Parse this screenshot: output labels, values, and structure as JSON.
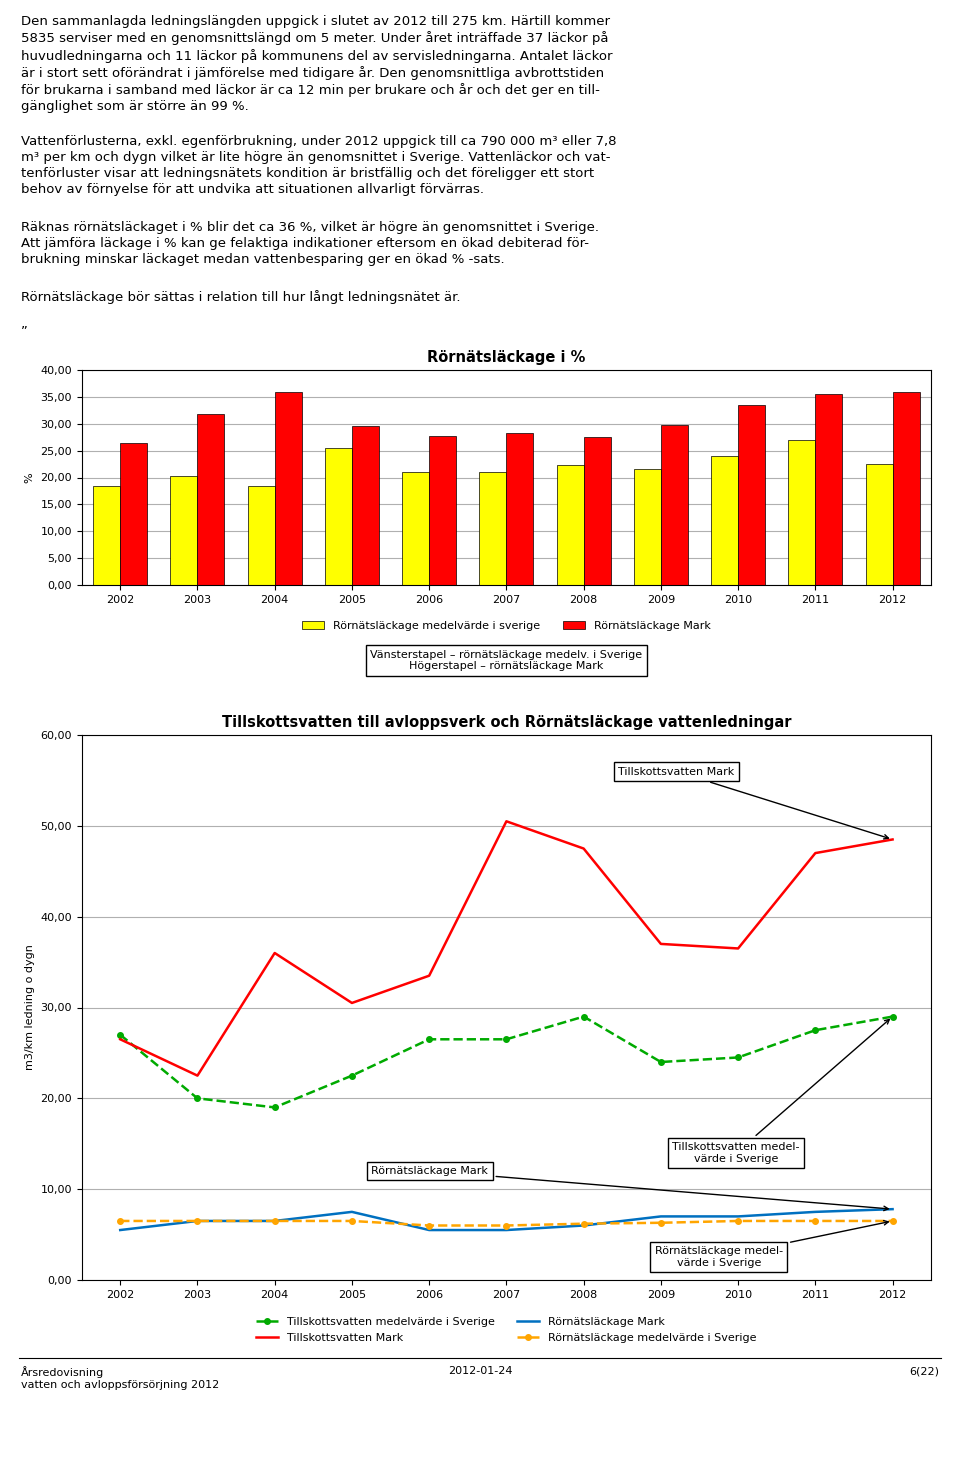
{
  "page_texts": [
    "Den sammanlagda ledningslängden uppgick i slutet av 2012 till 275 km. Härtill kommer\n5835 serviser med en genomsnittslängd om 5 meter. Under året inträffade 37 läckor på\nhuvudledningarna och 11 läckor på kommunens del av servisledningarna. Antalet läckor\när i stort sett oförändrat i jämförelse med tidigare år. Den genomsnittliga avbrottstiden\nför brukarna i samband med läckor är ca 12 min per brukare och år och det ger en till-\ngänglighet som är större än 99 %.",
    "Vattenförlusterna, exkl. egenförbrukning, under 2012 uppgick till ca 790 000 m³ eller 7,8\nm³ per km och dygn vilket är lite högre än genomsnittet i Sverige. Vattenläckor och vat-\ntenförluster visar att ledningsnätets kondition är bristfällig och det föreligger ett stort\nbehov av förnyelse för att undvika att situationen allvarligt förvärras.",
    "Räknas rörnätsläckaget i % blir det ca 36 %, vilket är högre än genomsnittet i Sverige.\nAtt jämföra läckage i % kan ge felaktiga indikationer eftersom en ökad debiterad för-\nbrukning minskar läckaget medan vattenbesparing ger en ökad % -sats.",
    "Rörnätsläckage bör sättas i relation till hur långt ledningsnätet är.",
    "”"
  ],
  "chart_data": [
    {
      "type": "bar",
      "title": "Rörnätsläckage i %",
      "y_label": "%",
      "categories": [
        "2002",
        "2003",
        "2004",
        "2005",
        "2006",
        "2007",
        "2008",
        "2009",
        "2010",
        "2011",
        "2012"
      ],
      "series": [
        {
          "name": "Rörnätsläckage medelvärde i sverige",
          "color": "#FFFF00",
          "values": [
            18.5,
            20.3,
            18.5,
            25.5,
            21.0,
            21.0,
            22.3,
            21.5,
            24.0,
            27.0,
            22.5
          ]
        },
        {
          "name": "Rörnätsläckage Mark",
          "color": "#FF0000",
          "values": [
            26.5,
            31.8,
            36.0,
            29.5,
            27.7,
            28.2,
            27.5,
            29.7,
            33.5,
            35.5,
            36.0
          ]
        }
      ],
      "ylim": [
        0,
        40
      ],
      "yticks": [
        {
          "value": 0,
          "label": "0,00"
        },
        {
          "value": 5,
          "label": "5,00"
        },
        {
          "value": 10,
          "label": "10,00"
        },
        {
          "value": 15,
          "label": "15,00"
        },
        {
          "value": 20,
          "label": "20,00"
        },
        {
          "value": 25,
          "label": "25,00"
        },
        {
          "value": 30,
          "label": "30,00"
        },
        {
          "value": 35,
          "label": "35,00"
        },
        {
          "value": 40,
          "label": "40,00"
        }
      ],
      "grid": true,
      "legend": "upper center",
      "annotations": [
        {
          "text": "Vänsterstapel – rörnätsläckage medelv. i Sverige\nHögerstapel – rörnätsläckage Mark"
        }
      ]
    },
    {
      "type": "line",
      "title": "Tillskottsvatten till avloppsverk och Rörnätsläckage vattenledningar",
      "y_label": "m3/km ledning o dygn",
      "categories": [
        "2002",
        "2003",
        "2004",
        "2005",
        "2006",
        "2007",
        "2008",
        "2009",
        "2010",
        "2011",
        "2012"
      ],
      "series": [
        {
          "name": "Tillskottsvatten medelvärde i Sverige",
          "color": "#00AA00",
          "line_style": "dashed",
          "marker": "o",
          "values": [
            27.0,
            20.0,
            19.0,
            22.5,
            26.5,
            26.5,
            29.0,
            24.0,
            24.5,
            27.5,
            29.0
          ]
        },
        {
          "name": "Tillskottsvatten Mark",
          "color": "#FF0000",
          "line_style": "solid",
          "values": [
            26.5,
            22.5,
            36.0,
            30.5,
            33.5,
            50.5,
            47.5,
            37.0,
            36.5,
            47.0,
            48.5
          ]
        },
        {
          "name": "Rörnätsläckage Mark",
          "color": "#0070C0",
          "line_style": "solid",
          "values": [
            5.5,
            6.5,
            6.5,
            7.5,
            5.5,
            5.5,
            6.0,
            7.0,
            7.0,
            7.5,
            7.8
          ]
        },
        {
          "name": "Rörnätsläckage medelvärde i Sverige",
          "color": "#FFA500",
          "line_style": "dashed",
          "marker": "o",
          "values": [
            6.5,
            6.5,
            6.5,
            6.5,
            6.0,
            6.0,
            6.2,
            6.3,
            6.5,
            6.5,
            6.5
          ]
        }
      ],
      "ylim": [
        0,
        60
      ],
      "yticks": [
        {
          "value": 0,
          "label": "0,00"
        },
        {
          "value": 10,
          "label": "10,00"
        },
        {
          "value": 20,
          "label": "20,00"
        },
        {
          "value": 30,
          "label": "30,00"
        },
        {
          "value": 40,
          "label": "40,00"
        },
        {
          "value": 50,
          "label": "50,00"
        },
        {
          "value": 60,
          "label": "60,00"
        }
      ],
      "grid": true,
      "legend": "upper center",
      "annotations": [
        {
          "text": "Tillskottsvatten Mark",
          "series": "Tillskottsvatten Mark"
        },
        {
          "text": "Tillskottsvatten medel-\nvärde i Sverige",
          "series": "Tillskottsvatten medelvärde i Sverige"
        },
        {
          "text": "Rörnätsläckage Mark",
          "series": "Rörnätsläckage Mark"
        },
        {
          "text": "Rörnätsläckage medel-\nvärde i Sverige",
          "series": "Rörnätsläckage medelvärde i Sverige"
        }
      ]
    }
  ],
  "footer": [
    "Årsredovisning\nvatten och avloppsförsörjning 2012",
    "2012-01-24",
    "6(22)"
  ]
}
